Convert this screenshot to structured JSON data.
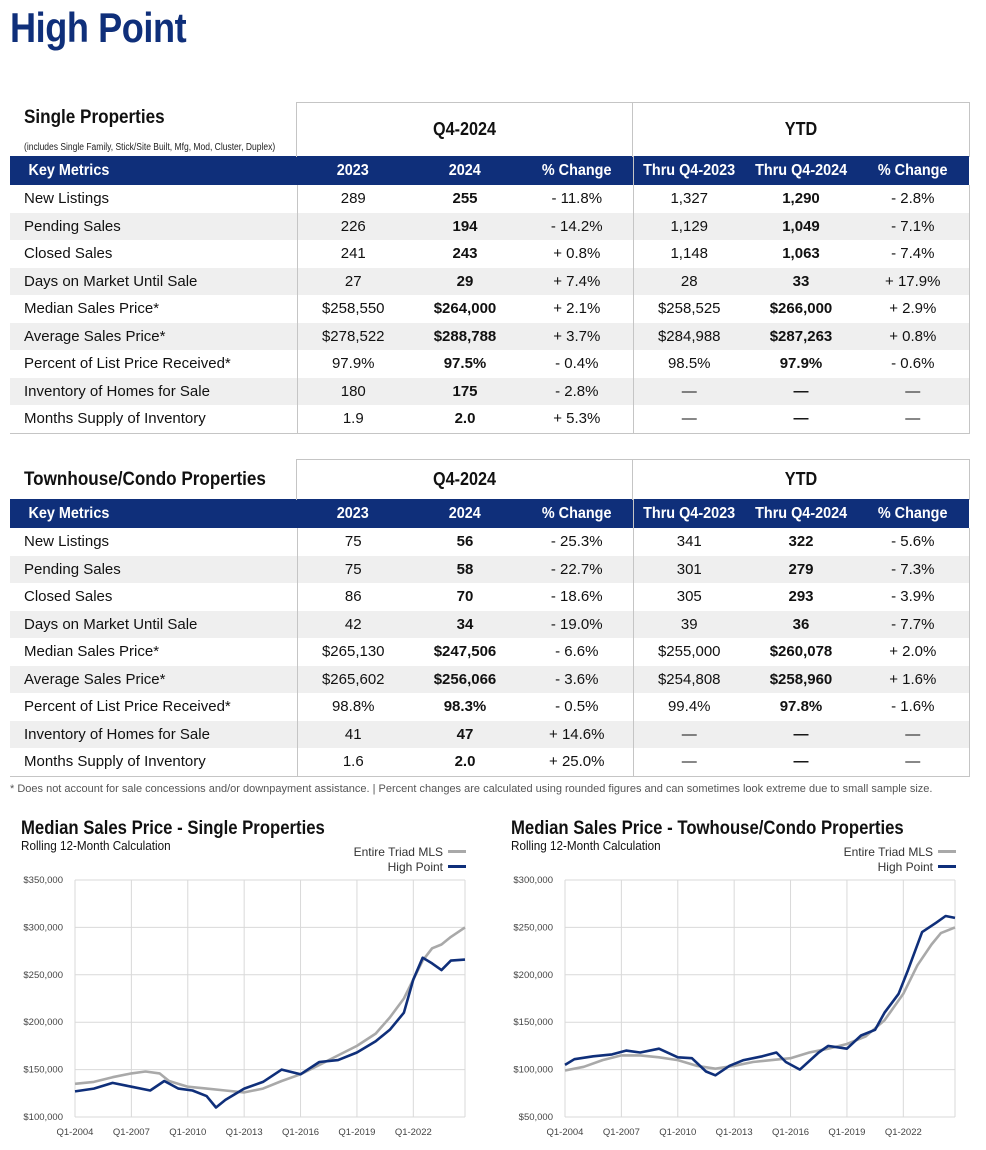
{
  "page": {
    "title": "High Point"
  },
  "single": {
    "title": "Single Properties",
    "subtitle": "(includes Single Family, Stick/Site Built, Mfg, Mod, Cluster, Duplex)",
    "group_q": "Q4-2024",
    "group_ytd": "YTD",
    "headers": [
      "Key Metrics",
      "2023",
      "2024",
      "% Change",
      "Thru Q4-2023",
      "Thru Q4-2024",
      "% Change"
    ],
    "rows": [
      [
        "New Listings",
        "289",
        "255",
        "- 11.8%",
        "1,327",
        "1,290",
        "- 2.8%"
      ],
      [
        "Pending Sales",
        "226",
        "194",
        "- 14.2%",
        "1,129",
        "1,049",
        "- 7.1%"
      ],
      [
        "Closed Sales",
        "241",
        "243",
        "+ 0.8%",
        "1,148",
        "1,063",
        "- 7.4%"
      ],
      [
        "Days on Market Until Sale",
        "27",
        "29",
        "+ 7.4%",
        "28",
        "33",
        "+ 17.9%"
      ],
      [
        "Median Sales Price*",
        "$258,550",
        "$264,000",
        "+ 2.1%",
        "$258,525",
        "$266,000",
        "+ 2.9%"
      ],
      [
        "Average Sales Price*",
        "$278,522",
        "$288,788",
        "+ 3.7%",
        "$284,988",
        "$287,263",
        "+ 0.8%"
      ],
      [
        "Percent of List Price Received*",
        "97.9%",
        "97.5%",
        "- 0.4%",
        "98.5%",
        "97.9%",
        "- 0.6%"
      ],
      [
        "Inventory of Homes for Sale",
        "180",
        "175",
        "- 2.8%",
        "—",
        "—",
        "—"
      ],
      [
        "Months Supply of Inventory",
        "1.9",
        "2.0",
        "+ 5.3%",
        "—",
        "—",
        "—"
      ]
    ]
  },
  "townhouse": {
    "title": "Townhouse/Condo Properties",
    "group_q": "Q4-2024",
    "group_ytd": "YTD",
    "headers": [
      "Key Metrics",
      "2023",
      "2024",
      "% Change",
      "Thru Q4-2023",
      "Thru Q4-2024",
      "% Change"
    ],
    "rows": [
      [
        "New Listings",
        "75",
        "56",
        "- 25.3%",
        "341",
        "322",
        "- 5.6%"
      ],
      [
        "Pending Sales",
        "75",
        "58",
        "- 22.7%",
        "301",
        "279",
        "- 7.3%"
      ],
      [
        "Closed Sales",
        "86",
        "70",
        "- 18.6%",
        "305",
        "293",
        "- 3.9%"
      ],
      [
        "Days on Market Until Sale",
        "42",
        "34",
        "- 19.0%",
        "39",
        "36",
        "- 7.7%"
      ],
      [
        "Median Sales Price*",
        "$265,130",
        "$247,506",
        "- 6.6%",
        "$255,000",
        "$260,078",
        "+ 2.0%"
      ],
      [
        "Average Sales Price*",
        "$265,602",
        "$256,066",
        "- 3.6%",
        "$254,808",
        "$258,960",
        "+ 1.6%"
      ],
      [
        "Percent of List Price Received*",
        "98.8%",
        "98.3%",
        "- 0.5%",
        "99.4%",
        "97.8%",
        "- 1.6%"
      ],
      [
        "Inventory of Homes for Sale",
        "41",
        "47",
        "+ 14.6%",
        "—",
        "—",
        "—"
      ],
      [
        "Months Supply of Inventory",
        "1.6",
        "2.0",
        "+ 25.0%",
        "—",
        "—",
        "—"
      ]
    ]
  },
  "footnote": "* Does not account for sale concessions and/or downpayment assistance. | Percent changes are calculated using rounded figures and can sometimes look extreme due to small sample size.",
  "colors": {
    "brand": "#0f2f7a",
    "triad": "#a9a9a9",
    "grid": "#d9d9d9"
  },
  "chart_data": [
    {
      "type": "line",
      "title": "Median Sales Price - Single Properties",
      "subtitle": "Rolling 12-Month Calculation",
      "legend": [
        "Entire Triad MLS",
        "High Point"
      ],
      "x_tick_labels": [
        "Q1-2004",
        "Q1-2007",
        "Q1-2010",
        "Q1-2013",
        "Q1-2016",
        "Q1-2019",
        "Q1-2022"
      ],
      "y_tick_labels": [
        "$350,000",
        "$300,000",
        "$250,000",
        "$200,000",
        "$150,000",
        "$100,000"
      ],
      "ylim": [
        100000,
        350000
      ],
      "xlim": [
        2004.0,
        2024.75
      ],
      "series": [
        {
          "name": "Entire Triad MLS",
          "x": [
            2004,
            2005,
            2006,
            2007,
            2007.75,
            2008.5,
            2009,
            2010,
            2011,
            2012,
            2013,
            2014,
            2015,
            2016,
            2017,
            2018,
            2019,
            2020,
            2020.75,
            2021.5,
            2022,
            2022.5,
            2023,
            2023.5,
            2024,
            2024.75
          ],
          "y": [
            135000,
            137000,
            142000,
            146000,
            148000,
            146000,
            138000,
            132000,
            130000,
            128000,
            126000,
            130000,
            138000,
            145000,
            155000,
            165000,
            175000,
            188000,
            205000,
            225000,
            245000,
            265000,
            278000,
            282000,
            290000,
            300000
          ]
        },
        {
          "name": "High Point",
          "x": [
            2004,
            2005,
            2006,
            2007,
            2008,
            2008.75,
            2009.5,
            2010.25,
            2011,
            2011.5,
            2012,
            2013,
            2014,
            2015,
            2016,
            2017,
            2018,
            2019,
            2020,
            2020.75,
            2021.5,
            2022,
            2022.5,
            2023,
            2023.5,
            2024,
            2024.75
          ],
          "y": [
            127000,
            130000,
            136000,
            132000,
            128000,
            138000,
            130000,
            128000,
            122000,
            110000,
            118000,
            130000,
            137000,
            150000,
            145000,
            158000,
            160000,
            168000,
            180000,
            192000,
            210000,
            245000,
            268000,
            262000,
            255000,
            265000,
            266000
          ]
        }
      ]
    },
    {
      "type": "line",
      "title": "Median Sales Price - Towhouse/Condo Properties",
      "subtitle": "Rolling 12-Month Calculation",
      "legend": [
        "Entire Triad MLS",
        "High Point"
      ],
      "x_tick_labels": [
        "Q1-2004",
        "Q1-2007",
        "Q1-2010",
        "Q1-2013",
        "Q1-2016",
        "Q1-2019",
        "Q1-2022"
      ],
      "y_tick_labels": [
        "$300,000",
        "$250,000",
        "$200,000",
        "$150,000",
        "$100,000",
        "$50,000"
      ],
      "ylim": [
        50000,
        300000
      ],
      "xlim": [
        2004.0,
        2024.75
      ],
      "series": [
        {
          "name": "Entire Triad MLS",
          "x": [
            2004,
            2005,
            2006,
            2007,
            2008,
            2009,
            2010,
            2011,
            2012,
            2013,
            2014,
            2015,
            2016,
            2017,
            2018,
            2019,
            2020,
            2021,
            2022,
            2022.75,
            2023.5,
            2024,
            2024.75
          ],
          "y": [
            99000,
            103000,
            110000,
            115000,
            115000,
            113000,
            110000,
            104000,
            101000,
            104000,
            108000,
            110000,
            112000,
            118000,
            122000,
            127000,
            135000,
            152000,
            180000,
            210000,
            232000,
            244000,
            250000
          ]
        },
        {
          "name": "High Point",
          "x": [
            2004,
            2004.5,
            2005.5,
            2006.5,
            2007.25,
            2008,
            2009,
            2010,
            2010.75,
            2011.5,
            2012,
            2012.75,
            2013.5,
            2014.5,
            2015.25,
            2015.75,
            2016.5,
            2017.5,
            2018,
            2019,
            2019.75,
            2020.5,
            2021,
            2021.75,
            2022.25,
            2023,
            2023.75,
            2024.25,
            2024.75
          ],
          "y": [
            105000,
            111000,
            114000,
            116000,
            120000,
            118000,
            122000,
            113000,
            112000,
            98000,
            94000,
            104000,
            110000,
            114000,
            118000,
            108000,
            100000,
            118000,
            125000,
            122000,
            136000,
            142000,
            160000,
            180000,
            205000,
            245000,
            255000,
            262000,
            260000
          ]
        }
      ]
    }
  ]
}
